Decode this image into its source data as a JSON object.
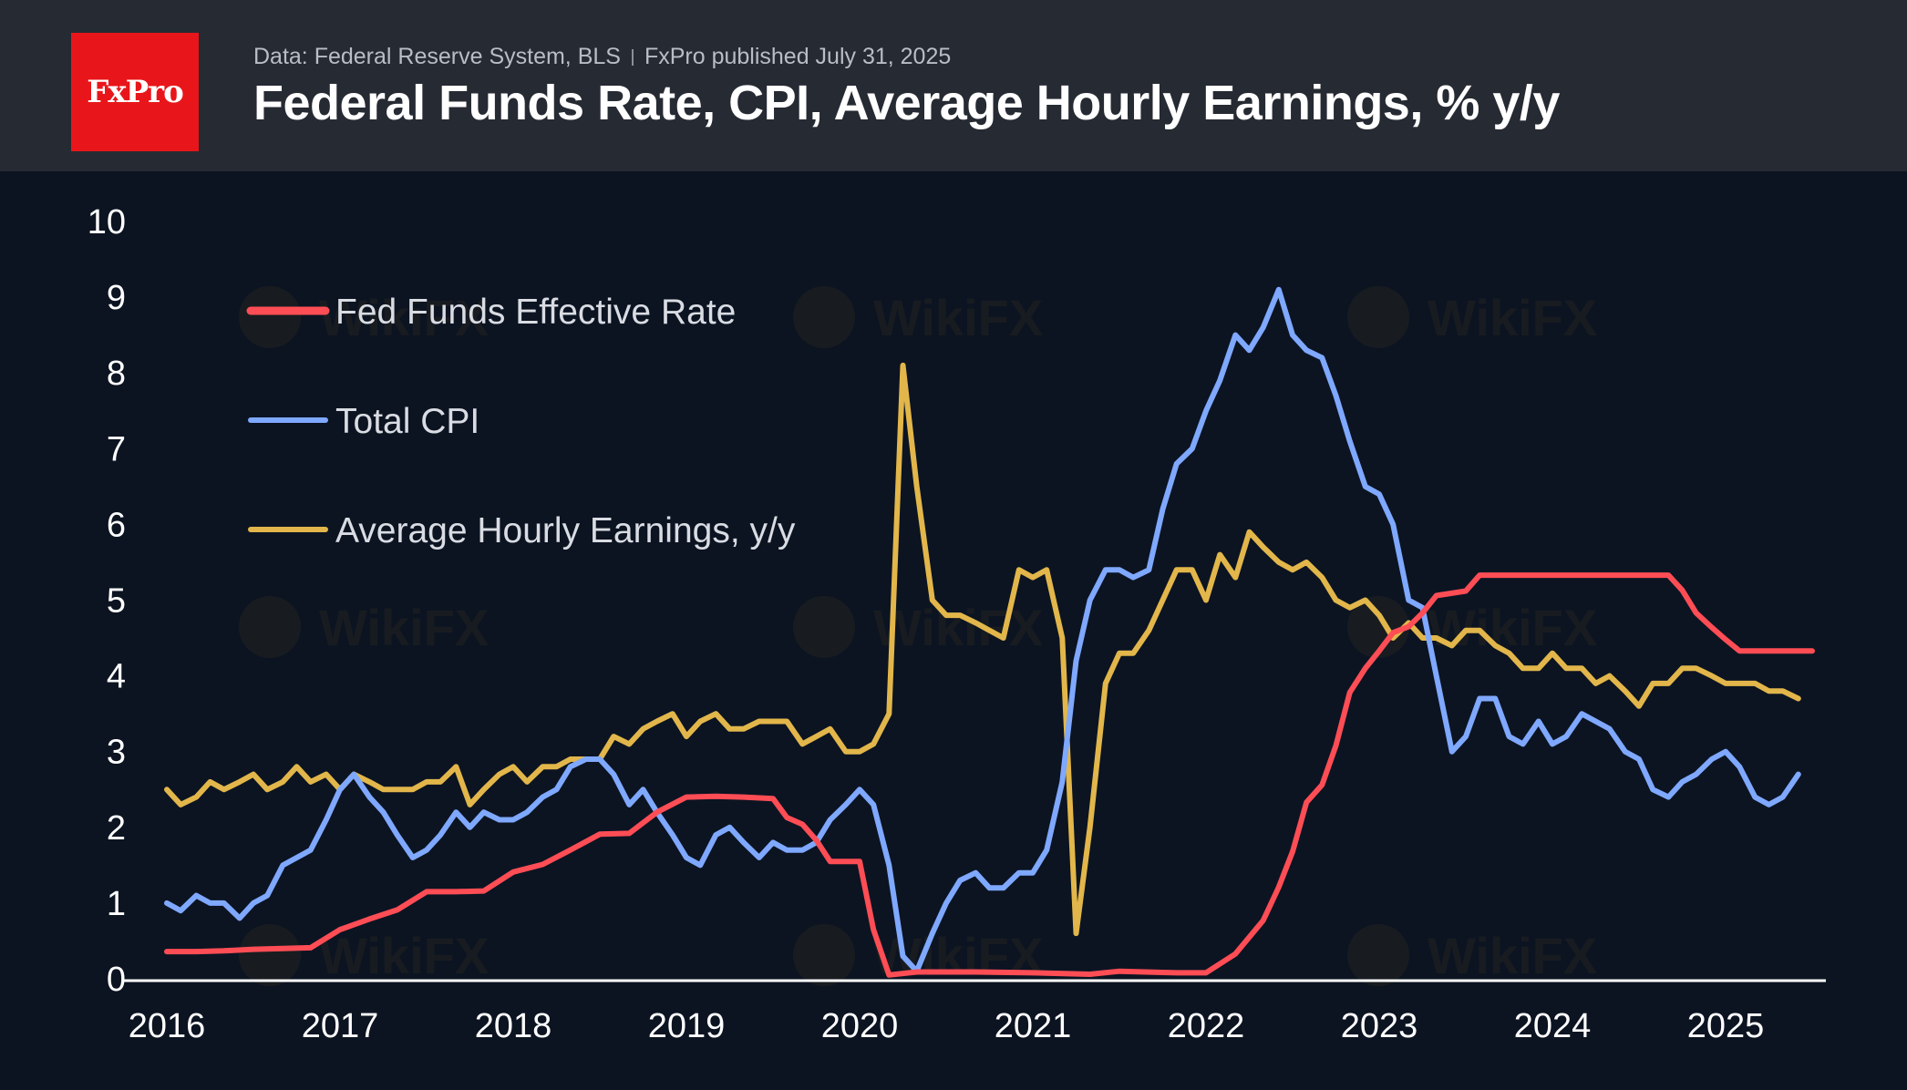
{
  "header": {
    "logo_text": "FxPro",
    "source_text": "Data: Federal Reserve System, BLS",
    "published_text": "FxPro published July 31, 2025",
    "title": "Federal Funds Rate, CPI, Average Hourly Earnings, % y/y"
  },
  "watermark": {
    "text": "WikiFX"
  },
  "colors": {
    "background": "#0c1422",
    "header": "#262a33",
    "logo": "#e8161a",
    "fed": "#ff4d55",
    "cpi": "#7fa8ff",
    "ahe": "#e2b64a",
    "axis": "#ffffff"
  },
  "chart_data": {
    "type": "line",
    "title": "Federal Funds Rate, CPI, Average Hourly Earnings, % y/y",
    "xlabel": "",
    "ylabel": "",
    "xlim": [
      2016.0,
      2025.5
    ],
    "ylim": [
      0,
      10
    ],
    "x_ticks": [
      "2016",
      "2017",
      "2018",
      "2019",
      "2020",
      "2021",
      "2022",
      "2023",
      "2024",
      "2025"
    ],
    "y_ticks": [
      "0",
      "1",
      "2",
      "3",
      "4",
      "5",
      "6",
      "7",
      "8",
      "9",
      "10"
    ],
    "grid": false,
    "legend_position": "top-left",
    "series": [
      {
        "name": "Fed Funds Effective Rate",
        "color": "#ff4d55",
        "points": [
          [
            2016.0,
            0.36
          ],
          [
            2016.17,
            0.36
          ],
          [
            2016.33,
            0.37
          ],
          [
            2016.5,
            0.39
          ],
          [
            2016.67,
            0.4
          ],
          [
            2016.83,
            0.41
          ],
          [
            2017.0,
            0.65
          ],
          [
            2017.17,
            0.79
          ],
          [
            2017.33,
            0.91
          ],
          [
            2017.5,
            1.15
          ],
          [
            2017.67,
            1.15
          ],
          [
            2017.83,
            1.16
          ],
          [
            2018.0,
            1.41
          ],
          [
            2018.17,
            1.51
          ],
          [
            2018.33,
            1.7
          ],
          [
            2018.5,
            1.91
          ],
          [
            2018.67,
            1.92
          ],
          [
            2018.83,
            2.2
          ],
          [
            2019.0,
            2.4
          ],
          [
            2019.17,
            2.41
          ],
          [
            2019.33,
            2.4
          ],
          [
            2019.5,
            2.38
          ],
          [
            2019.58,
            2.13
          ],
          [
            2019.67,
            2.04
          ],
          [
            2019.75,
            1.83
          ],
          [
            2019.83,
            1.55
          ],
          [
            2020.0,
            1.55
          ],
          [
            2020.08,
            0.65
          ],
          [
            2020.17,
            0.05
          ],
          [
            2020.33,
            0.09
          ],
          [
            2020.67,
            0.09
          ],
          [
            2021.0,
            0.08
          ],
          [
            2021.33,
            0.06
          ],
          [
            2021.5,
            0.1
          ],
          [
            2021.83,
            0.08
          ],
          [
            2022.0,
            0.08
          ],
          [
            2022.17,
            0.33
          ],
          [
            2022.33,
            0.77
          ],
          [
            2022.42,
            1.21
          ],
          [
            2022.5,
            1.68
          ],
          [
            2022.58,
            2.33
          ],
          [
            2022.67,
            2.56
          ],
          [
            2022.75,
            3.08
          ],
          [
            2022.83,
            3.78
          ],
          [
            2022.92,
            4.1
          ],
          [
            2023.0,
            4.33
          ],
          [
            2023.08,
            4.57
          ],
          [
            2023.17,
            4.65
          ],
          [
            2023.25,
            4.83
          ],
          [
            2023.33,
            5.06
          ],
          [
            2023.5,
            5.12
          ],
          [
            2023.58,
            5.33
          ],
          [
            2024.0,
            5.33
          ],
          [
            2024.5,
            5.33
          ],
          [
            2024.67,
            5.33
          ],
          [
            2024.75,
            5.13
          ],
          [
            2024.83,
            4.83
          ],
          [
            2024.92,
            4.64
          ],
          [
            2025.0,
            4.48
          ],
          [
            2025.08,
            4.33
          ],
          [
            2025.5,
            4.33
          ]
        ]
      },
      {
        "name": "Total CPI",
        "color": "#7fa8ff",
        "points": [
          [
            2016.0,
            1.0
          ],
          [
            2016.08,
            0.9
          ],
          [
            2016.17,
            1.1
          ],
          [
            2016.25,
            1.0
          ],
          [
            2016.33,
            1.0
          ],
          [
            2016.42,
            0.8
          ],
          [
            2016.5,
            1.0
          ],
          [
            2016.58,
            1.1
          ],
          [
            2016.67,
            1.5
          ],
          [
            2016.83,
            1.7
          ],
          [
            2016.92,
            2.1
          ],
          [
            2017.0,
            2.5
          ],
          [
            2017.08,
            2.7
          ],
          [
            2017.17,
            2.4
          ],
          [
            2017.25,
            2.2
          ],
          [
            2017.33,
            1.9
          ],
          [
            2017.42,
            1.6
          ],
          [
            2017.5,
            1.7
          ],
          [
            2017.58,
            1.9
          ],
          [
            2017.67,
            2.2
          ],
          [
            2017.75,
            2.0
          ],
          [
            2017.83,
            2.2
          ],
          [
            2017.92,
            2.1
          ],
          [
            2018.0,
            2.1
          ],
          [
            2018.08,
            2.2
          ],
          [
            2018.17,
            2.4
          ],
          [
            2018.25,
            2.5
          ],
          [
            2018.33,
            2.8
          ],
          [
            2018.42,
            2.9
          ],
          [
            2018.5,
            2.9
          ],
          [
            2018.58,
            2.7
          ],
          [
            2018.67,
            2.3
          ],
          [
            2018.75,
            2.5
          ],
          [
            2018.83,
            2.2
          ],
          [
            2018.92,
            1.9
          ],
          [
            2019.0,
            1.6
          ],
          [
            2019.08,
            1.5
          ],
          [
            2019.17,
            1.9
          ],
          [
            2019.25,
            2.0
          ],
          [
            2019.33,
            1.8
          ],
          [
            2019.42,
            1.6
          ],
          [
            2019.5,
            1.8
          ],
          [
            2019.58,
            1.7
          ],
          [
            2019.67,
            1.7
          ],
          [
            2019.75,
            1.8
          ],
          [
            2019.83,
            2.1
          ],
          [
            2019.92,
            2.3
          ],
          [
            2020.0,
            2.5
          ],
          [
            2020.08,
            2.3
          ],
          [
            2020.17,
            1.5
          ],
          [
            2020.25,
            0.3
          ],
          [
            2020.33,
            0.1
          ],
          [
            2020.42,
            0.6
          ],
          [
            2020.5,
            1.0
          ],
          [
            2020.58,
            1.3
          ],
          [
            2020.67,
            1.4
          ],
          [
            2020.75,
            1.2
          ],
          [
            2020.83,
            1.2
          ],
          [
            2020.92,
            1.4
          ],
          [
            2021.0,
            1.4
          ],
          [
            2021.08,
            1.7
          ],
          [
            2021.17,
            2.6
          ],
          [
            2021.25,
            4.2
          ],
          [
            2021.33,
            5.0
          ],
          [
            2021.42,
            5.4
          ],
          [
            2021.5,
            5.4
          ],
          [
            2021.58,
            5.3
          ],
          [
            2021.67,
            5.4
          ],
          [
            2021.75,
            6.2
          ],
          [
            2021.83,
            6.8
          ],
          [
            2021.92,
            7.0
          ],
          [
            2022.0,
            7.5
          ],
          [
            2022.08,
            7.9
          ],
          [
            2022.17,
            8.5
          ],
          [
            2022.25,
            8.3
          ],
          [
            2022.33,
            8.6
          ],
          [
            2022.42,
            9.1
          ],
          [
            2022.5,
            8.5
          ],
          [
            2022.58,
            8.3
          ],
          [
            2022.67,
            8.2
          ],
          [
            2022.75,
            7.7
          ],
          [
            2022.83,
            7.1
          ],
          [
            2022.92,
            6.5
          ],
          [
            2023.0,
            6.4
          ],
          [
            2023.08,
            6.0
          ],
          [
            2023.17,
            5.0
          ],
          [
            2023.25,
            4.9
          ],
          [
            2023.33,
            4.0
          ],
          [
            2023.42,
            3.0
          ],
          [
            2023.5,
            3.2
          ],
          [
            2023.58,
            3.7
          ],
          [
            2023.67,
            3.7
          ],
          [
            2023.75,
            3.2
          ],
          [
            2023.83,
            3.1
          ],
          [
            2023.92,
            3.4
          ],
          [
            2024.0,
            3.1
          ],
          [
            2024.08,
            3.2
          ],
          [
            2024.17,
            3.5
          ],
          [
            2024.25,
            3.4
          ],
          [
            2024.33,
            3.3
          ],
          [
            2024.42,
            3.0
          ],
          [
            2024.5,
            2.9
          ],
          [
            2024.58,
            2.5
          ],
          [
            2024.67,
            2.4
          ],
          [
            2024.75,
            2.6
          ],
          [
            2024.83,
            2.7
          ],
          [
            2024.92,
            2.9
          ],
          [
            2025.0,
            3.0
          ],
          [
            2025.08,
            2.8
          ],
          [
            2025.17,
            2.4
          ],
          [
            2025.25,
            2.3
          ],
          [
            2025.33,
            2.4
          ],
          [
            2025.42,
            2.7
          ]
        ]
      },
      {
        "name": "Average Hourly Earnings, y/y",
        "color": "#e2b64a",
        "points": [
          [
            2016.0,
            2.5
          ],
          [
            2016.08,
            2.3
          ],
          [
            2016.17,
            2.4
          ],
          [
            2016.25,
            2.6
          ],
          [
            2016.33,
            2.5
          ],
          [
            2016.42,
            2.6
          ],
          [
            2016.5,
            2.7
          ],
          [
            2016.58,
            2.5
          ],
          [
            2016.67,
            2.6
          ],
          [
            2016.75,
            2.8
          ],
          [
            2016.83,
            2.6
          ],
          [
            2016.92,
            2.7
          ],
          [
            2017.0,
            2.5
          ],
          [
            2017.08,
            2.7
          ],
          [
            2017.17,
            2.6
          ],
          [
            2017.25,
            2.5
          ],
          [
            2017.33,
            2.5
          ],
          [
            2017.42,
            2.5
          ],
          [
            2017.5,
            2.6
          ],
          [
            2017.58,
            2.6
          ],
          [
            2017.67,
            2.8
          ],
          [
            2017.75,
            2.3
          ],
          [
            2017.83,
            2.5
          ],
          [
            2017.92,
            2.7
          ],
          [
            2018.0,
            2.8
          ],
          [
            2018.08,
            2.6
          ],
          [
            2018.17,
            2.8
          ],
          [
            2018.25,
            2.8
          ],
          [
            2018.33,
            2.9
          ],
          [
            2018.42,
            2.9
          ],
          [
            2018.5,
            2.9
          ],
          [
            2018.58,
            3.2
          ],
          [
            2018.67,
            3.1
          ],
          [
            2018.75,
            3.3
          ],
          [
            2018.83,
            3.4
          ],
          [
            2018.92,
            3.5
          ],
          [
            2019.0,
            3.2
          ],
          [
            2019.08,
            3.4
          ],
          [
            2019.17,
            3.5
          ],
          [
            2019.25,
            3.3
          ],
          [
            2019.33,
            3.3
          ],
          [
            2019.42,
            3.4
          ],
          [
            2019.5,
            3.4
          ],
          [
            2019.58,
            3.4
          ],
          [
            2019.67,
            3.1
          ],
          [
            2019.75,
            3.2
          ],
          [
            2019.83,
            3.3
          ],
          [
            2019.92,
            3.0
          ],
          [
            2020.0,
            3.0
          ],
          [
            2020.08,
            3.1
          ],
          [
            2020.17,
            3.5
          ],
          [
            2020.25,
            8.1
          ],
          [
            2020.33,
            6.5
          ],
          [
            2020.42,
            5.0
          ],
          [
            2020.5,
            4.8
          ],
          [
            2020.58,
            4.8
          ],
          [
            2020.67,
            4.7
          ],
          [
            2020.75,
            4.6
          ],
          [
            2020.83,
            4.5
          ],
          [
            2020.92,
            5.4
          ],
          [
            2021.0,
            5.3
          ],
          [
            2021.08,
            5.4
          ],
          [
            2021.17,
            4.5
          ],
          [
            2021.25,
            0.6
          ],
          [
            2021.33,
            2.0
          ],
          [
            2021.42,
            3.9
          ],
          [
            2021.5,
            4.3
          ],
          [
            2021.58,
            4.3
          ],
          [
            2021.67,
            4.6
          ],
          [
            2021.75,
            5.0
          ],
          [
            2021.83,
            5.4
          ],
          [
            2021.92,
            5.4
          ],
          [
            2022.0,
            5.0
          ],
          [
            2022.08,
            5.6
          ],
          [
            2022.17,
            5.3
          ],
          [
            2022.25,
            5.9
          ],
          [
            2022.33,
            5.7
          ],
          [
            2022.42,
            5.5
          ],
          [
            2022.5,
            5.4
          ],
          [
            2022.58,
            5.5
          ],
          [
            2022.67,
            5.3
          ],
          [
            2022.75,
            5.0
          ],
          [
            2022.83,
            4.9
          ],
          [
            2022.92,
            5.0
          ],
          [
            2023.0,
            4.8
          ],
          [
            2023.08,
            4.5
          ],
          [
            2023.17,
            4.7
          ],
          [
            2023.25,
            4.5
          ],
          [
            2023.33,
            4.5
          ],
          [
            2023.42,
            4.4
          ],
          [
            2023.5,
            4.6
          ],
          [
            2023.58,
            4.6
          ],
          [
            2023.67,
            4.4
          ],
          [
            2023.75,
            4.3
          ],
          [
            2023.83,
            4.1
          ],
          [
            2023.92,
            4.1
          ],
          [
            2024.0,
            4.3
          ],
          [
            2024.08,
            4.1
          ],
          [
            2024.17,
            4.1
          ],
          [
            2024.25,
            3.9
          ],
          [
            2024.33,
            4.0
          ],
          [
            2024.42,
            3.8
          ],
          [
            2024.5,
            3.6
          ],
          [
            2024.58,
            3.9
          ],
          [
            2024.67,
            3.9
          ],
          [
            2024.75,
            4.1
          ],
          [
            2024.83,
            4.1
          ],
          [
            2024.92,
            4.0
          ],
          [
            2025.0,
            3.9
          ],
          [
            2025.08,
            3.9
          ],
          [
            2025.17,
            3.9
          ],
          [
            2025.25,
            3.8
          ],
          [
            2025.33,
            3.8
          ],
          [
            2025.42,
            3.7
          ]
        ]
      }
    ]
  }
}
